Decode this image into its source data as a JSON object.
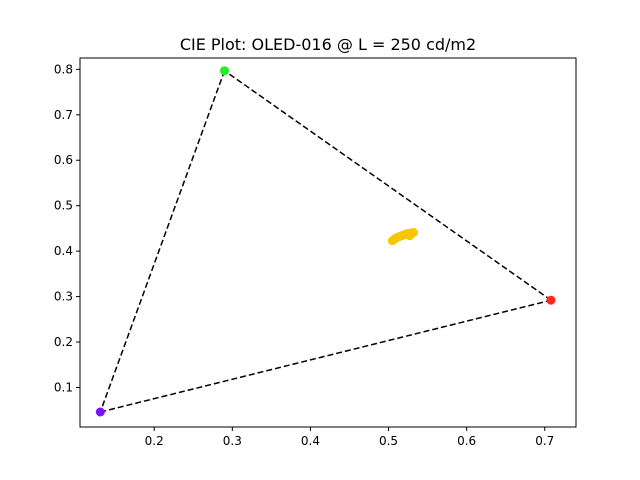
{
  "chart_data": {
    "type": "scatter",
    "title": "CIE Plot: OLED-016 @ L = 250 cd/m2",
    "xlabel": "",
    "ylabel": "",
    "xlim": [
      0.105,
      0.74
    ],
    "ylim": [
      0.013,
      0.825
    ],
    "x_ticks": [
      0.2,
      0.3,
      0.4,
      0.5,
      0.6,
      0.7
    ],
    "y_ticks": [
      0.1,
      0.2,
      0.3,
      0.4,
      0.5,
      0.6,
      0.7,
      0.8
    ],
    "grid": false,
    "gamut_triangle": {
      "line_style": "dashed",
      "color": "#000000",
      "vertices": [
        {
          "x": 0.708,
          "y": 0.292,
          "color": "#ff2a1a"
        },
        {
          "x": 0.29,
          "y": 0.797,
          "color": "#22ee22"
        },
        {
          "x": 0.131,
          "y": 0.046,
          "color": "#7a12ff"
        }
      ]
    },
    "series": [
      {
        "color": "#f7c600",
        "points": [
          {
            "x": 0.505,
            "y": 0.423
          },
          {
            "x": 0.508,
            "y": 0.427
          },
          {
            "x": 0.511,
            "y": 0.43
          },
          {
            "x": 0.514,
            "y": 0.432
          },
          {
            "x": 0.517,
            "y": 0.434
          },
          {
            "x": 0.52,
            "y": 0.436
          },
          {
            "x": 0.523,
            "y": 0.438
          },
          {
            "x": 0.526,
            "y": 0.439
          },
          {
            "x": 0.529,
            "y": 0.44
          },
          {
            "x": 0.532,
            "y": 0.441
          },
          {
            "x": 0.527,
            "y": 0.434
          }
        ]
      }
    ]
  }
}
